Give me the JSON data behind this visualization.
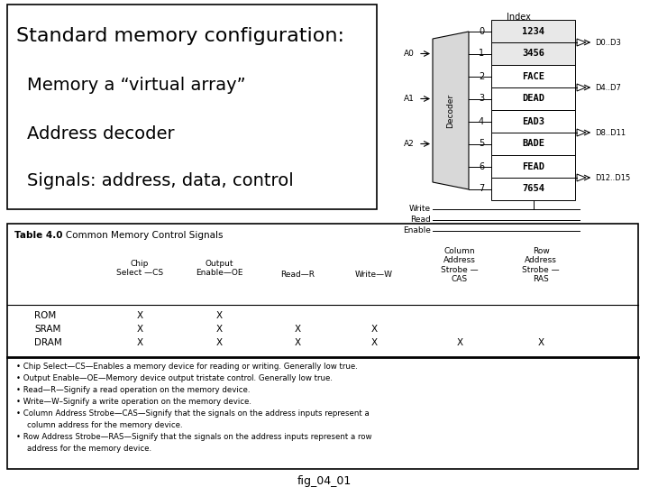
{
  "title": "fig_04_01",
  "top_left_text": [
    "Standard memory configuration:",
    "Memory a “virtual array”",
    "Address decoder",
    "Signals: address, data, control"
  ],
  "memory_cells": [
    "1234",
    "3456",
    "FACE",
    "DEAD",
    "EAD3",
    "BADE",
    "FEAD",
    "7654"
  ],
  "memory_indices": [
    "0",
    "1",
    "2",
    "3",
    "4",
    "5",
    "6",
    "7"
  ],
  "address_labels": [
    "A0",
    "A1",
    "A2"
  ],
  "data_out_labels": [
    "D0..D3",
    "D4..D7",
    "D8..D11",
    "D12..D15"
  ],
  "control_labels": [
    "Write",
    "Read",
    "Enable"
  ],
  "index_label": "Index",
  "decoder_label": "Decoder",
  "table_title_bold": "Table 4.0",
  "table_title_rest": "   Common Memory Control Signals",
  "col_headers": [
    [
      "Chip",
      "Select —CS"
    ],
    [
      "Output",
      "Enable—OE"
    ],
    [
      "Read—R",
      ""
    ],
    [
      "Write—W",
      ""
    ],
    [
      "Column\nAddress\nStrobe —",
      "CAS"
    ],
    [
      "Row\nAddress\nStrobe —",
      "RAS"
    ]
  ],
  "table_rows": [
    [
      "ROM",
      "X",
      "X",
      "",
      "",
      "",
      ""
    ],
    [
      "SRAM",
      "X",
      "X",
      "X",
      "X",
      "",
      ""
    ],
    [
      "DRAM",
      "X",
      "X",
      "X",
      "X",
      "X",
      "X"
    ]
  ],
  "bullet_points": [
    "Chip Select—CS—Enables a memory device for reading or writing. Generally low true.",
    "Output Enable—OE—Memory device output tristate control. Generally low true.",
    "Read—R—Signify a read operation on the memory device.",
    "Write—W–Signify a write operation on the memory device.",
    "Column Address Strobe—CAS—Signify that the signals on the address inputs represent a column address for the memory device.",
    "Row Address Strobe—RAS—Signify that the signals on the address inputs represent a row address for the memory device."
  ],
  "bg_color": "#ffffff"
}
